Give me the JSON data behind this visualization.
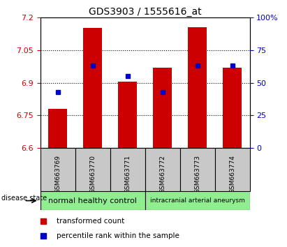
{
  "title": "GDS3903 / 1555616_at",
  "samples": [
    "GSM663769",
    "GSM663770",
    "GSM663771",
    "GSM663772",
    "GSM663773",
    "GSM663774"
  ],
  "transformed_counts": [
    6.78,
    7.15,
    6.905,
    6.97,
    7.155,
    6.97
  ],
  "percentile_ranks": [
    43,
    63,
    55,
    43,
    63,
    63
  ],
  "ylim_left": [
    6.6,
    7.2
  ],
  "ylim_right": [
    0,
    100
  ],
  "yticks_left": [
    6.6,
    6.75,
    6.9,
    7.05,
    7.2
  ],
  "yticks_right": [
    0,
    25,
    50,
    75,
    100
  ],
  "ytick_labels_left": [
    "6.6",
    "6.75",
    "6.9",
    "7.05",
    "7.2"
  ],
  "ytick_labels_right": [
    "0",
    "25",
    "50",
    "75",
    "100%"
  ],
  "bar_color": "#cc0000",
  "dot_color": "#0000cc",
  "bar_width": 0.55,
  "baseline": 6.6,
  "group1_label": "normal healthy control",
  "group2_label": "intracranial arterial aneurysm",
  "group_color": "#90ee90",
  "sample_bg_color": "#c8c8c8",
  "disease_state_label": "disease state",
  "legend_bar_label": "transformed count",
  "legend_dot_label": "percentile rank within the sample",
  "dotted_lines": [
    6.75,
    6.9,
    7.05
  ]
}
